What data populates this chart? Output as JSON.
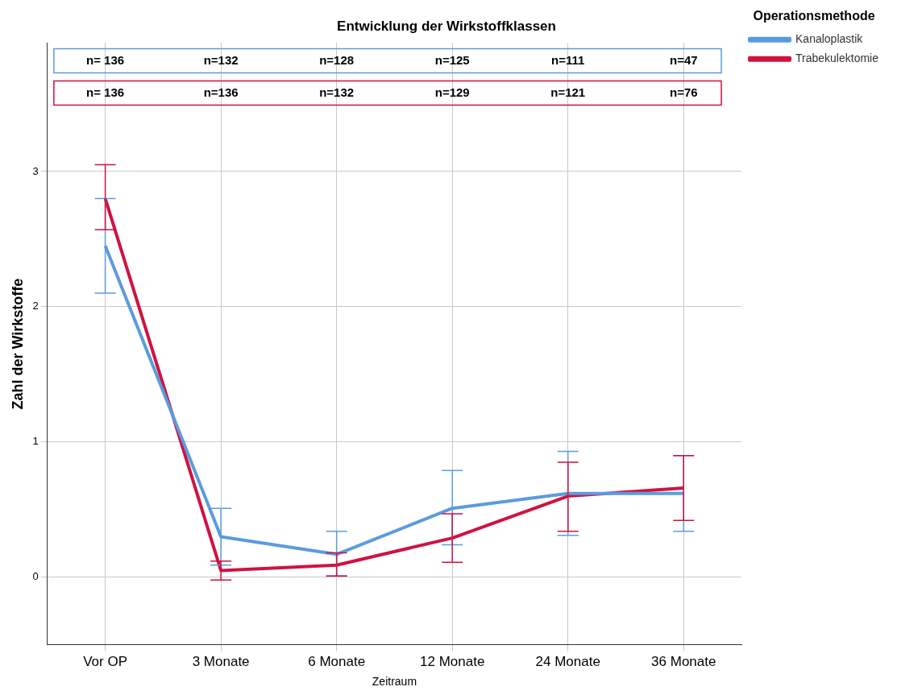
{
  "chart_data": {
    "type": "line",
    "title": "Entwicklung der Wirkstoffklassen",
    "xlabel": "Zeitraum",
    "ylabel": "Zahl der Wirkstoffe",
    "legend_title": "Operationsmethode",
    "categories": [
      "Vor OP",
      "3 Monate",
      "6 Monate",
      "12 Monate",
      "24 Monate",
      "36 Monate"
    ],
    "series": [
      {
        "name": "Kanaloplastik",
        "color": "#5b9be0",
        "values": [
          2.45,
          0.3,
          0.17,
          0.51,
          0.62,
          0.62
        ],
        "errors": [
          [
            2.1,
            2.8
          ],
          [
            0.09,
            0.51
          ],
          [
            0.01,
            0.34
          ],
          [
            0.24,
            0.79
          ],
          [
            0.31,
            0.93
          ],
          [
            0.34,
            0.9
          ]
        ]
      },
      {
        "name": "Trabekulektomie",
        "color": "#d0123f",
        "values": [
          2.8,
          0.05,
          0.09,
          0.29,
          0.6,
          0.66
        ],
        "errors": [
          [
            2.57,
            3.05
          ],
          [
            -0.02,
            0.12
          ],
          [
            0.01,
            0.18
          ],
          [
            0.11,
            0.47
          ],
          [
            0.34,
            0.85
          ],
          [
            0.42,
            0.9
          ]
        ]
      }
    ],
    "annotations": [
      "n= 136",
      "n=132",
      "n=128",
      "n=125",
      "n=111",
      "n=47",
      "n= 136",
      "n=136",
      "n=132",
      "n=129",
      "n=121",
      "n=76"
    ],
    "ylim": [
      -0.5,
      3.95
    ],
    "yticks": [
      0,
      1,
      2,
      3
    ],
    "grid": true,
    "legend": "top right",
    "marker": "none",
    "line_style": "solid"
  }
}
